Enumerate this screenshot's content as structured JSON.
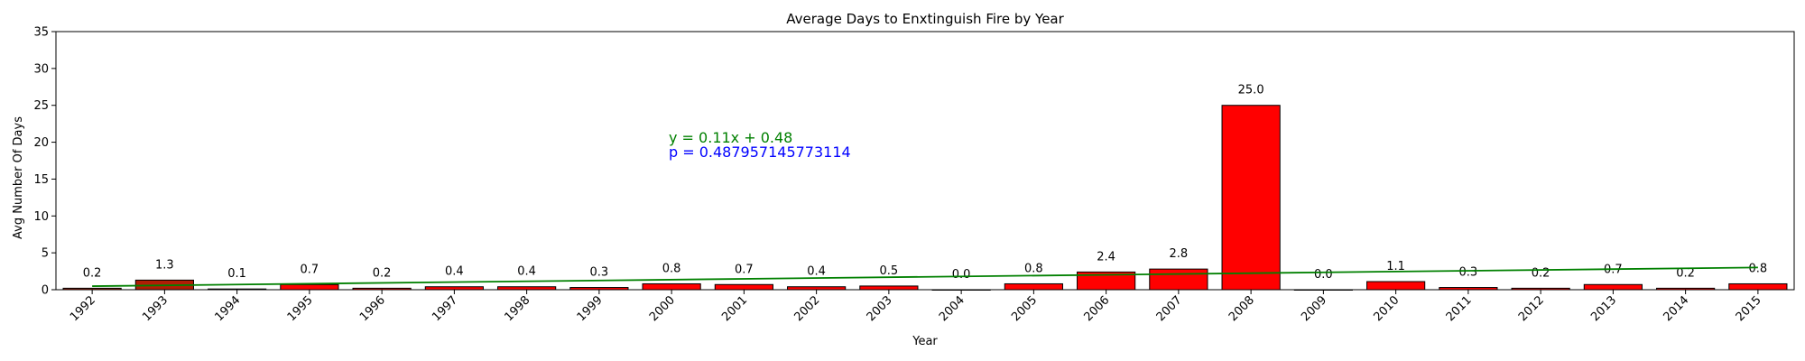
{
  "chart_data": {
    "type": "bar",
    "title": "Average Days to Enxtinguish Fire by Year",
    "xlabel": "Year",
    "ylabel": "Avg Number Of Days",
    "ylim": [
      0,
      35
    ],
    "yticks": [
      0,
      5,
      10,
      15,
      20,
      25,
      30,
      35
    ],
    "grid": false,
    "categories": [
      "1992",
      "1993",
      "1994",
      "1995",
      "1996",
      "1997",
      "1998",
      "1999",
      "2000",
      "2001",
      "2002",
      "2003",
      "2004",
      "2005",
      "2006",
      "2007",
      "2008",
      "2009",
      "2010",
      "2011",
      "2012",
      "2013",
      "2014",
      "2015"
    ],
    "values": [
      0.2,
      1.3,
      0.1,
      0.7,
      0.2,
      0.4,
      0.4,
      0.3,
      0.8,
      0.7,
      0.4,
      0.5,
      0.0,
      0.8,
      2.4,
      2.8,
      25.0,
      0.0,
      1.1,
      0.3,
      0.2,
      0.7,
      0.2,
      0.8
    ],
    "data_labels": [
      "0.2",
      "1.3",
      "0.1",
      "0.7",
      "0.2",
      "0.4",
      "0.4",
      "0.3",
      "0.8",
      "0.7",
      "0.4",
      "0.5",
      "0.0",
      "0.8",
      "2.4",
      "2.8",
      "25.0",
      "0.0",
      "1.1",
      "0.3",
      "0.2",
      "0.7",
      "0.2",
      "0.8"
    ],
    "bar_colors": [
      "#a81e0a",
      "#b01d05",
      "#ff0000",
      "#ff0000",
      "#ff0000",
      "#ff0000",
      "#ff0000",
      "#ff0000",
      "#ff0000",
      "#ff0000",
      "#ff0000",
      "#ff0000",
      "#ff0000",
      "#ff0000",
      "#ff0000",
      "#ff0000",
      "#ff0000",
      "#ff0000",
      "#ff0000",
      "#ff0000",
      "#ff0000",
      "#ff0000",
      "#ff0000",
      "#ff0000"
    ],
    "bar_edge_color": "#000000",
    "trendline": {
      "slope": 0.11,
      "intercept": 0.48,
      "color": "#008000",
      "equation_text": "y = 0.11x + 0.48",
      "p_text": "p = 0.487957145773114",
      "p_color": "#0000ff"
    }
  }
}
